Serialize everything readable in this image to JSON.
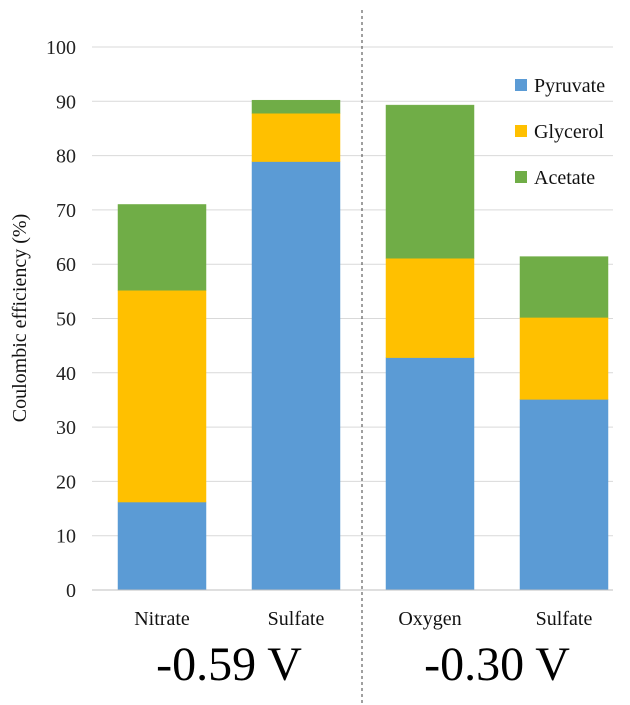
{
  "chart_data": {
    "type": "bar",
    "stacked": true,
    "categories": [
      "Nitrate",
      "Sulfate",
      "Oxygen",
      "Sulfate"
    ],
    "groups": [
      {
        "label": "-0.59 V",
        "categories": [
          "Nitrate",
          "Sulfate"
        ]
      },
      {
        "label": "-0.30 V",
        "categories": [
          "Oxygen",
          "Sulfate"
        ]
      }
    ],
    "series": [
      {
        "name": "Pyruvate",
        "color": "#5B9BD5",
        "values": [
          16.2,
          78.9,
          42.8,
          35.1
        ]
      },
      {
        "name": "Glycerol",
        "color": "#FFC000",
        "values": [
          39.0,
          8.9,
          18.3,
          15.1
        ]
      },
      {
        "name": "Acetate",
        "color": "#70AD47",
        "values": [
          15.8,
          2.4,
          28.2,
          11.2
        ]
      }
    ],
    "ylabel": "Coulombic efficiency (%)",
    "xlabel": "",
    "ylim": [
      0,
      100
    ],
    "yticks": [
      0,
      10,
      20,
      30,
      40,
      50,
      60,
      70,
      80,
      90,
      100
    ],
    "grid": true,
    "legend": "top-right",
    "divider": "dashed vertical line between groups"
  }
}
